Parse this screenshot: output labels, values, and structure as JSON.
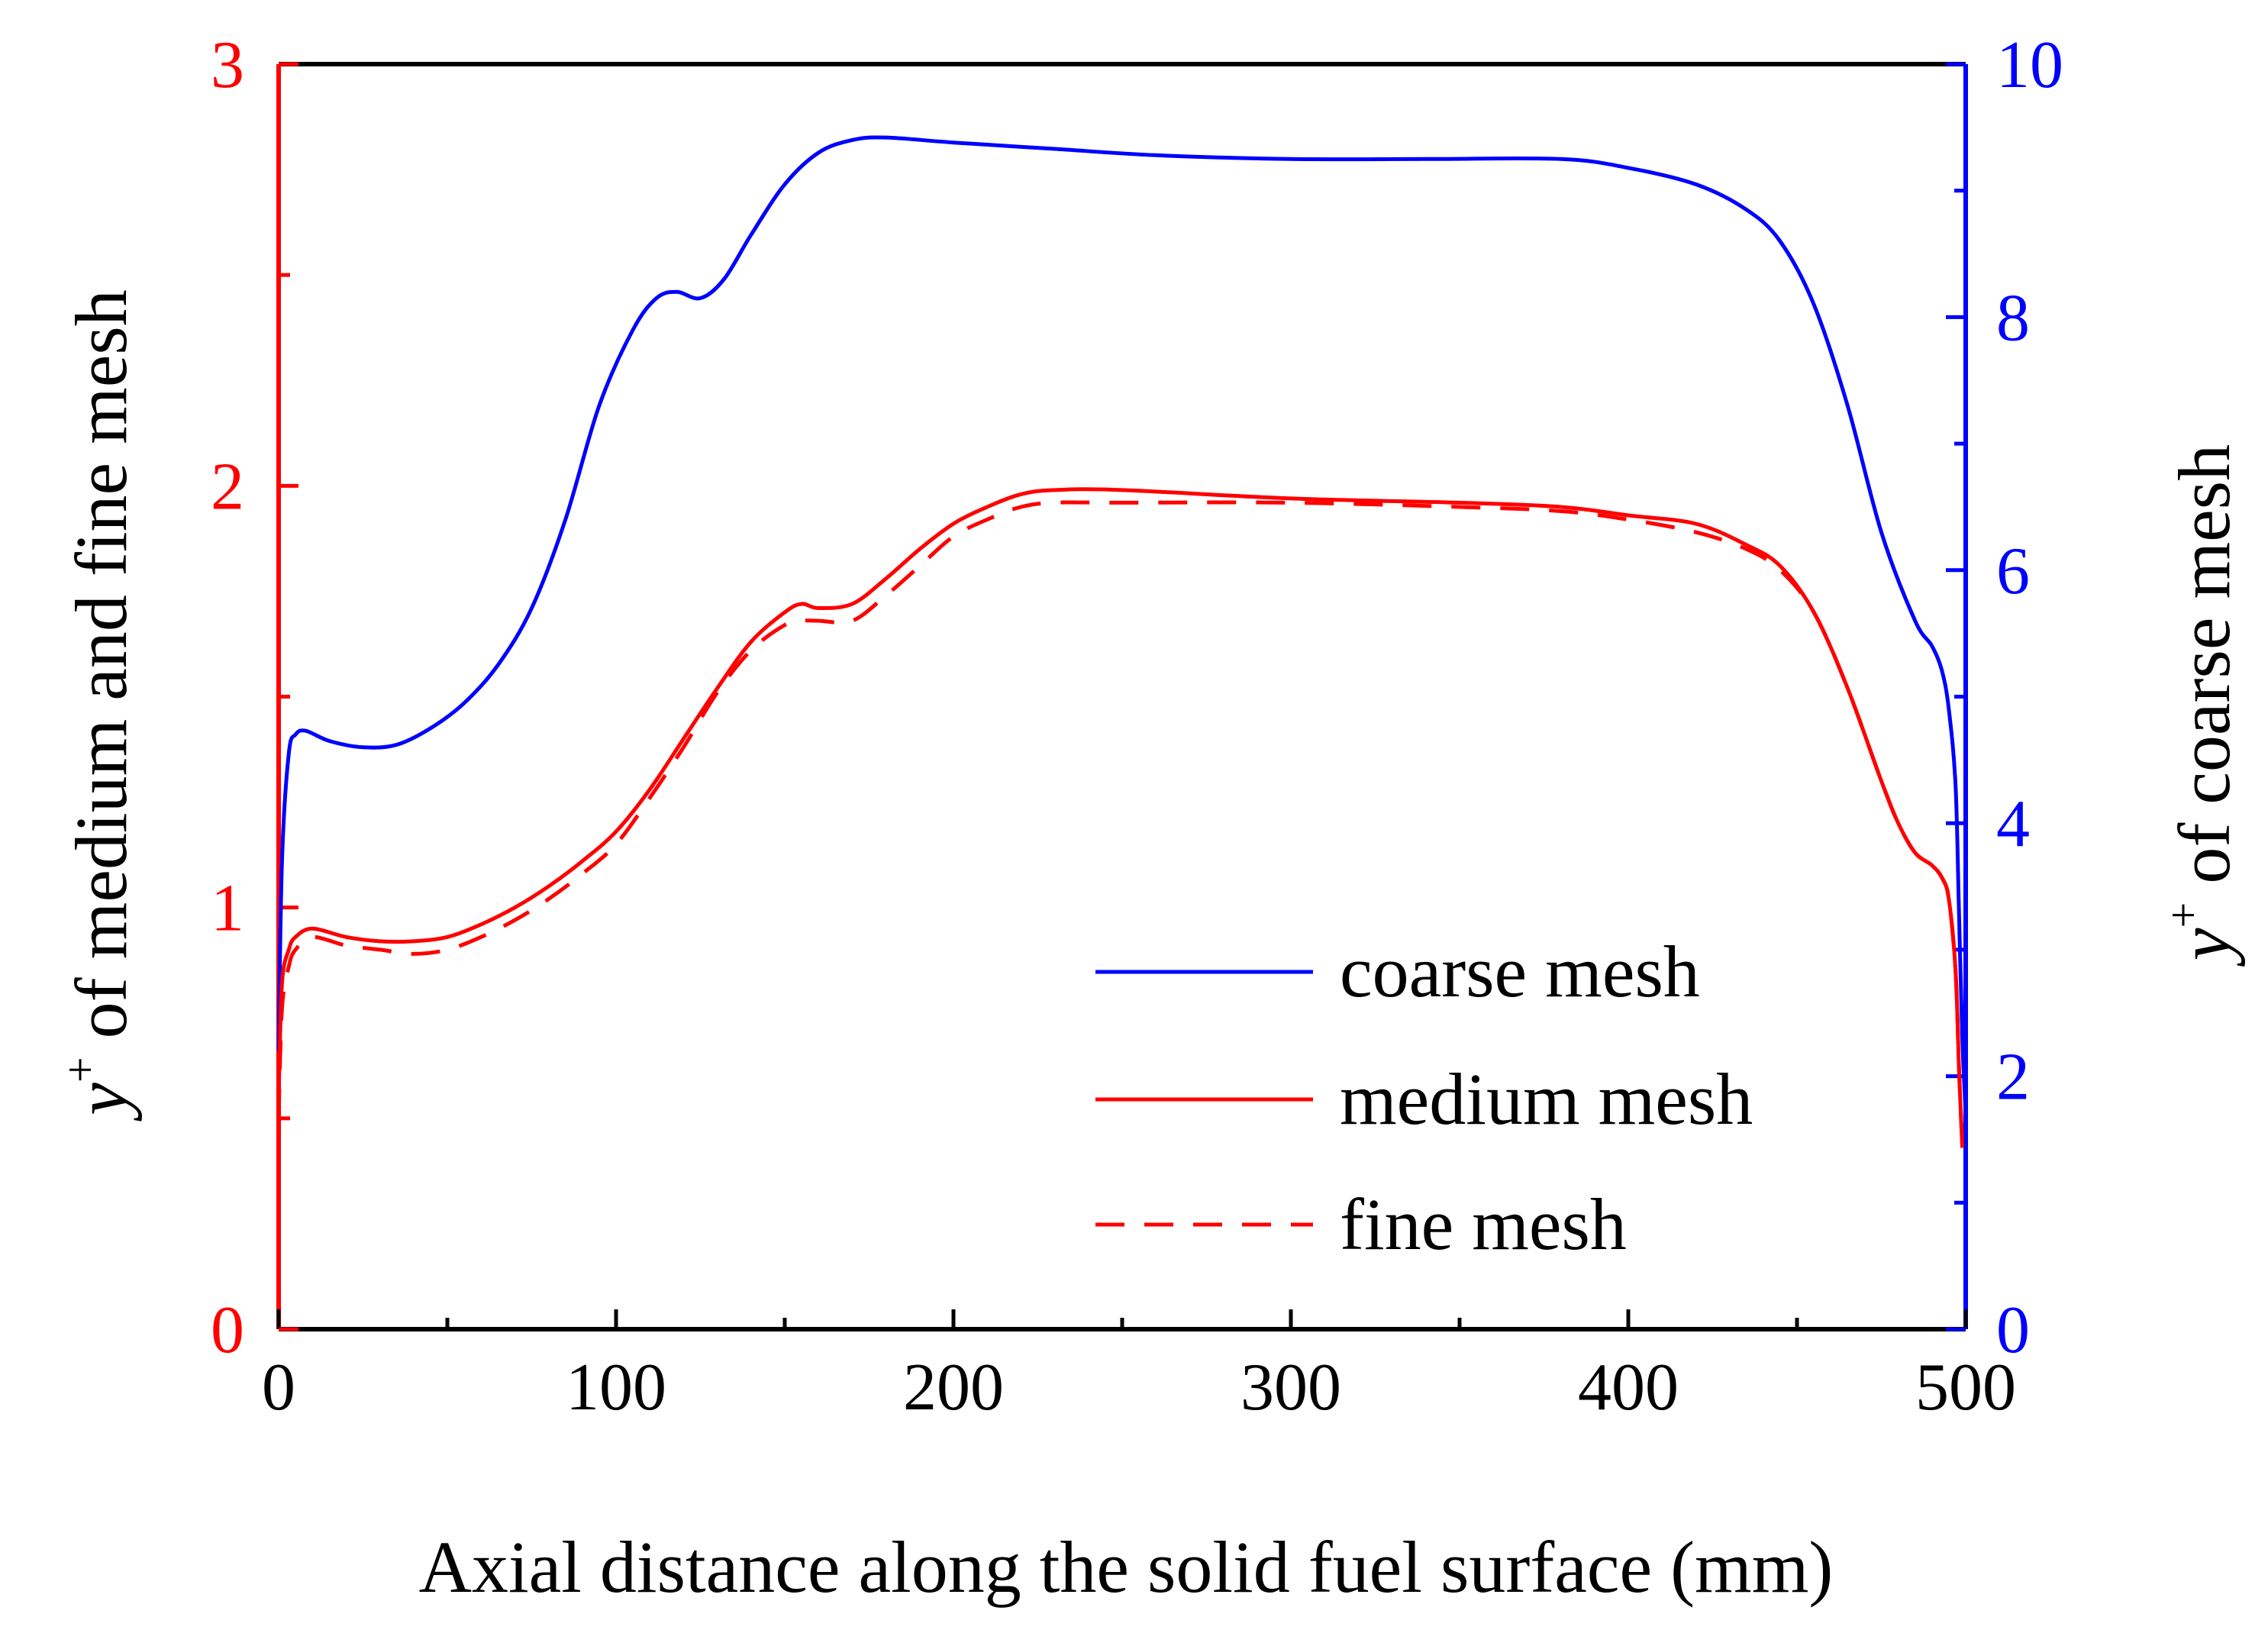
{
  "chart_data": {
    "type": "line",
    "xlabel": "Axial distance along the solid fuel surface (mm)",
    "ylabel_left": {
      "main": "y",
      "sup": "+",
      "rest": " of medium and fine mesh"
    },
    "ylabel_right": {
      "main": "y",
      "sup": "+",
      "rest": " of coarse mesh"
    },
    "xlim": [
      0,
      500
    ],
    "ylim_left": [
      0,
      3
    ],
    "ylim_right": [
      0,
      10
    ],
    "x_ticks": [
      "0",
      "100",
      "200",
      "300",
      "400",
      "500"
    ],
    "y_left_ticks": [
      "0",
      "1",
      "2",
      "3"
    ],
    "y_right_ticks": [
      "0",
      "2",
      "4",
      "6",
      "8",
      "10"
    ],
    "colors": {
      "left_axis": "#ff0000",
      "right_axis": "#0000ff",
      "frame": "#000000"
    },
    "series": [
      {
        "name": "coarse mesh",
        "axis": "right",
        "color": "#0000ff",
        "dash": "solid",
        "x": [
          0,
          1,
          3,
          5,
          8,
          15,
          25,
          35,
          45,
          55,
          65,
          75,
          85,
          95,
          105,
          112,
          118,
          125,
          132,
          140,
          150,
          160,
          170,
          180,
          200,
          230,
          260,
          300,
          340,
          380,
          400,
          420,
          435,
          445,
          455,
          465,
          475,
          485,
          490,
          493,
          495,
          497,
          498,
          499,
          500
        ],
        "values": [
          2.2,
          3.7,
          4.55,
          4.7,
          4.73,
          4.65,
          4.6,
          4.62,
          4.75,
          4.95,
          5.25,
          5.7,
          6.4,
          7.3,
          7.9,
          8.15,
          8.2,
          8.15,
          8.3,
          8.65,
          9.05,
          9.3,
          9.4,
          9.42,
          9.38,
          9.33,
          9.28,
          9.25,
          9.25,
          9.25,
          9.18,
          9.05,
          8.85,
          8.6,
          8.1,
          7.3,
          6.3,
          5.6,
          5.4,
          5.2,
          4.9,
          4.3,
          3.3,
          2.3,
          1.7
        ]
      },
      {
        "name": "medium mesh",
        "axis": "left",
        "color": "#ff0000",
        "dash": "solid",
        "x": [
          0,
          1,
          3,
          5,
          10,
          20,
          30,
          40,
          50,
          60,
          70,
          80,
          90,
          100,
          110,
          120,
          130,
          140,
          150,
          155,
          160,
          170,
          180,
          190,
          200,
          210,
          220,
          230,
          250,
          300,
          350,
          380,
          400,
          420,
          435,
          445,
          455,
          465,
          475,
          480,
          485,
          490,
          493,
          495,
          497,
          498,
          499
        ],
        "values": [
          0.55,
          0.82,
          0.9,
          0.93,
          0.95,
          0.93,
          0.92,
          0.92,
          0.93,
          0.96,
          1.0,
          1.05,
          1.11,
          1.18,
          1.28,
          1.4,
          1.52,
          1.63,
          1.7,
          1.72,
          1.71,
          1.72,
          1.78,
          1.85,
          1.91,
          1.95,
          1.98,
          1.99,
          1.99,
          1.97,
          1.96,
          1.95,
          1.93,
          1.91,
          1.86,
          1.81,
          1.7,
          1.52,
          1.3,
          1.2,
          1.13,
          1.1,
          1.07,
          1.02,
          0.85,
          0.62,
          0.43
        ]
      },
      {
        "name": "fine mesh",
        "axis": "left",
        "color": "#ff0000",
        "dash": "dashed",
        "x": [
          0,
          1,
          3,
          5,
          10,
          20,
          30,
          40,
          50,
          60,
          70,
          80,
          90,
          100,
          110,
          120,
          130,
          140,
          150,
          155,
          160,
          170,
          180,
          190,
          200,
          210,
          220,
          230,
          250,
          300,
          350,
          380,
          400,
          420,
          435,
          445,
          455,
          465,
          475,
          480,
          485,
          490,
          493,
          495,
          497,
          498,
          499
        ],
        "values": [
          0.5,
          0.76,
          0.86,
          0.9,
          0.93,
          0.91,
          0.9,
          0.89,
          0.9,
          0.93,
          0.97,
          1.02,
          1.08,
          1.15,
          1.26,
          1.38,
          1.51,
          1.61,
          1.67,
          1.68,
          1.68,
          1.68,
          1.74,
          1.81,
          1.88,
          1.92,
          1.95,
          1.96,
          1.96,
          1.96,
          1.95,
          1.94,
          1.92,
          1.89,
          1.85,
          1.8,
          1.7,
          1.52,
          1.3,
          1.2,
          1.13,
          1.1,
          1.07,
          1.02,
          0.85,
          0.62,
          0.43
        ]
      }
    ],
    "legend": {
      "position": "lower-right",
      "entries": [
        "coarse mesh",
        "medium mesh",
        "fine mesh"
      ]
    },
    "grid": false
  }
}
